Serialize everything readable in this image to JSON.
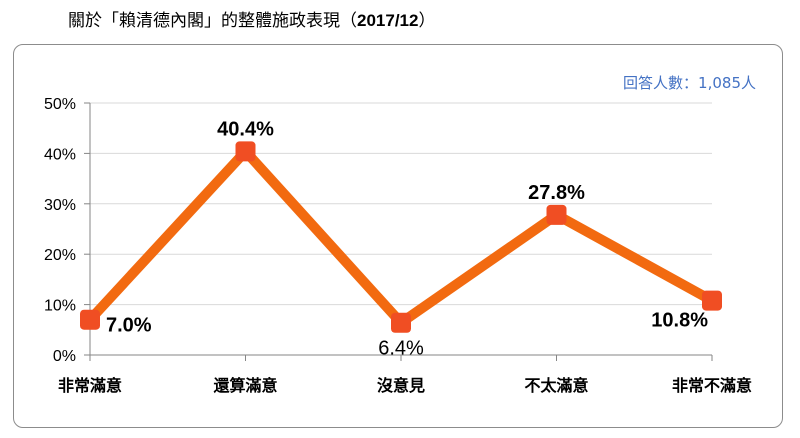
{
  "header": {
    "title_prefix": "關於「賴清德內閣」的整體施政表現（",
    "title_date": "2017/12",
    "title_suffix": "）"
  },
  "respondents_note": "回答人數：1,085人",
  "colors": {
    "line": "#f26a10",
    "marker": "#f04e23",
    "grid": "#d9d9d9",
    "axis": "#868686",
    "note": "#4472c4"
  },
  "chart_data": {
    "type": "line",
    "title": "關於「賴清德內閣」的整體施政表現（2017/12）",
    "categories": [
      "非常滿意",
      "還算滿意",
      "沒意見",
      "不太滿意",
      "非常不滿意"
    ],
    "series": [
      {
        "values": [
          7.0,
          40.4,
          6.4,
          27.8,
          10.8
        ]
      }
    ],
    "data_labels": [
      "7.0%",
      "40.4%",
      "6.4%",
      "27.8%",
      "10.8%"
    ],
    "yticks": [
      "0%",
      "10%",
      "20%",
      "30%",
      "40%",
      "50%"
    ],
    "ylim": [
      0,
      50
    ],
    "grid": true,
    "legend": "none"
  }
}
